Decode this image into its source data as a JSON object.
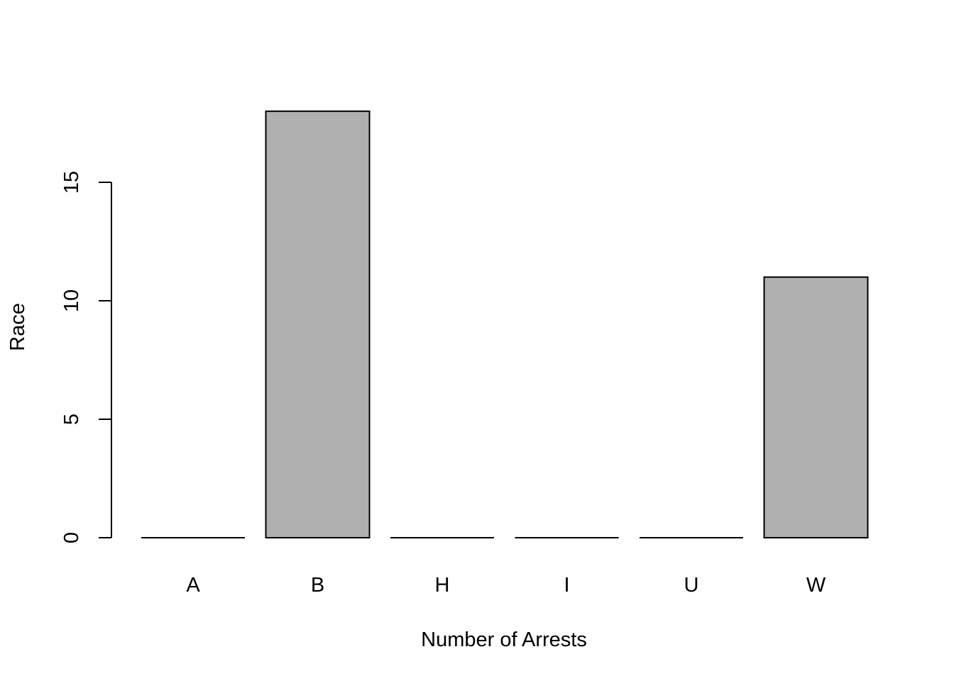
{
  "chart_data": {
    "type": "bar",
    "title": "",
    "xlabel": "Number of Arrests",
    "ylabel": "Race",
    "categories": [
      "A",
      "B",
      "H",
      "I",
      "U",
      "W"
    ],
    "values": [
      0,
      18,
      0,
      0,
      0,
      11
    ],
    "ylim": [
      0,
      18
    ],
    "yticks": [
      0,
      5,
      10,
      15
    ],
    "grid": false,
    "legend": "none",
    "colors": {
      "bar_fill": "#b0b0b0",
      "bar_stroke": "#000000",
      "axis": "#000000",
      "background": "#ffffff"
    }
  }
}
